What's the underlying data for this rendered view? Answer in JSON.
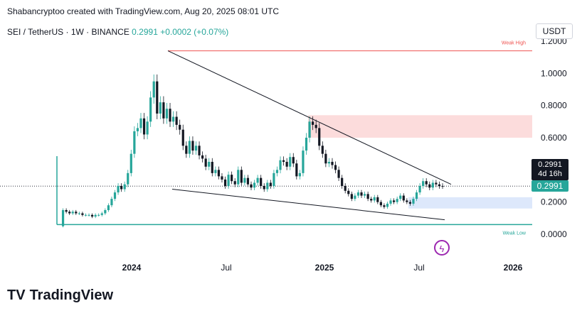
{
  "header": {
    "attribution": "Shabancryptoo created with TradingView.com, Aug 20, 2025 08:01 UTC"
  },
  "symbol": {
    "name": "SEI / TetherUS · 1W · BINANCE",
    "price": "0.2991",
    "change": "+0.0002 (+0.07%)"
  },
  "currency": "USDT",
  "price_tag": {
    "price": "0.2991",
    "countdown": "4d 16h",
    "price_green": "0.2991"
  },
  "annotations": {
    "weak_high": "Weak High",
    "weak_low": "Weak Low"
  },
  "footer": {
    "brand": "TradingView",
    "logo": "TV"
  },
  "colors": {
    "up": "#26a69a",
    "down": "#131722",
    "weak_high_line": "#ef5350",
    "weak_low_line": "#26a69a",
    "supply_zone": "#fcdcdc",
    "demand_zone": "#dde8fb"
  },
  "chart_data": {
    "type": "candlestick",
    "ylabel": "",
    "y_ticks": [
      "1.2000",
      "1.0000",
      "0.8000",
      "0.6000",
      "0.2000",
      "0.0000"
    ],
    "y_tick_values": [
      1.2,
      1.0,
      0.8,
      0.6,
      0.2,
      0.0
    ],
    "x_ticks": [
      "2024",
      "Jul",
      "2025",
      "Jul",
      "2026"
    ],
    "ylim": [
      -0.09,
      1.3
    ],
    "weak_high": 1.14,
    "weak_low": 0.06,
    "current_price": 0.2991,
    "zones": [
      {
        "name": "supply",
        "from": 0.6,
        "to": 0.74
      },
      {
        "name": "demand",
        "from": 0.16,
        "to": 0.23
      }
    ],
    "trendlines": [
      {
        "name": "upper",
        "from": [
          0,
          1.14
        ],
        "to": [
          1,
          0.33
        ]
      },
      {
        "name": "lower",
        "from": [
          0,
          0.32
        ],
        "to": [
          1,
          0.1
        ]
      }
    ],
    "closes": [
      0.05,
      0.15,
      0.14,
      0.13,
      0.14,
      0.13,
      0.13,
      0.12,
      0.12,
      0.12,
      0.11,
      0.12,
      0.12,
      0.13,
      0.15,
      0.18,
      0.22,
      0.26,
      0.3,
      0.28,
      0.31,
      0.38,
      0.5,
      0.64,
      0.66,
      0.72,
      0.62,
      0.7,
      0.85,
      0.95,
      0.75,
      0.82,
      0.72,
      0.78,
      0.7,
      0.73,
      0.68,
      0.65,
      0.55,
      0.5,
      0.58,
      0.52,
      0.55,
      0.49,
      0.47,
      0.42,
      0.45,
      0.38,
      0.4,
      0.36,
      0.34,
      0.3,
      0.37,
      0.33,
      0.31,
      0.4,
      0.32,
      0.35,
      0.31,
      0.29,
      0.32,
      0.35,
      0.3,
      0.28,
      0.32,
      0.3,
      0.38,
      0.4,
      0.46,
      0.45,
      0.42,
      0.48,
      0.44,
      0.36,
      0.38,
      0.52,
      0.6,
      0.7,
      0.68,
      0.66,
      0.55,
      0.5,
      0.44,
      0.45,
      0.43,
      0.4,
      0.35,
      0.3,
      0.27,
      0.25,
      0.22,
      0.24,
      0.26,
      0.24,
      0.25,
      0.22,
      0.21,
      0.23,
      0.2,
      0.18,
      0.17,
      0.19,
      0.21,
      0.2,
      0.22,
      0.24,
      0.21,
      0.2,
      0.19,
      0.22,
      0.26,
      0.3,
      0.33,
      0.31,
      0.29,
      0.32,
      0.31,
      0.3,
      0.2991
    ]
  }
}
